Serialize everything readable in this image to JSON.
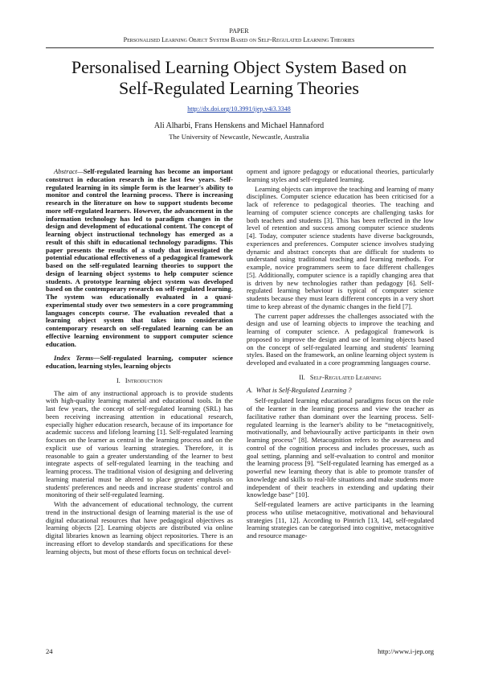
{
  "header": {
    "label": "PAPER",
    "running_title": "Personalised Learning Object System Based on Self-Regulated Learning Theories"
  },
  "title_block": {
    "title": "Personalised Learning Object System Based on Self-Regulated Learning Theories",
    "doi": "http://dx.doi.org/10.3991/ijep.v4i3.3348",
    "authors": "Ali Alharbi, Frans Henskens and Michael Hannaford",
    "affiliation": "The University of Newcastle, Newcastle, Australia"
  },
  "abstract": {
    "label": "Abstract—",
    "text": "Self-regulated learning has become an important construct in education research in the last few years. Self-regulated learning in its simple form is the learner's ability to monitor and control the learning process. There is increasing research in the literature on how to support students become more self-regulated learners. However, the advancement in the information technology has led to paradigm changes in the design and development of educational content. The concept of learning object instructional technology has emerged as a result of this shift in educational technology paradigms. This paper presents the results of a study that investigated the potential educational effectiveness of a pedagogical framework based on the self-regulated learning theories to support the design of learning object systems to help computer science students. A prototype learning object system was developed based on the contemporary research on self-regulated learning. The system was educationally evaluated in a quasi-experimental study over two semesters in a core programming languages concepts course. The evaluation revealed that a learning object system that takes into consideration contemporary research on self-regulated learning can be an effective learning environment to support computer science education."
  },
  "index_terms": {
    "label": "Index Terms—",
    "text": "Self-regulated learning, computer science education, learning styles, learning objects"
  },
  "sections": [
    {
      "number": "I.",
      "title": "Introduction",
      "paragraphs": [
        "The aim of any instructional approach is to provide students with high-quality learning material and educational tools. In the last few years, the concept of self-regulated learning (SRL) has been receiving increasing attention in educational research, especially higher education research, because of its importance for academic success and lifelong learning [1]. Self-regulated learning focuses on the learner as central in the learning process and on the explicit use of various learning strategies. Therefore, it is reasonable to gain a greater understanding of the learner to best integrate aspects of self-regulated learning in the teaching and learning process. The traditional vision of designing and delivering learning material must be altered to place greater emphasis on students' preferences and needs and increase students' control and monitoring of their self-regulated learning.",
        "With the advancement of educational technology, the current trend in the instructional design of learning material is the use of digital educational resources that have pedagogical objectives as learning objects [2]. Learning objects are distributed via online digital libraries known as learning object repositories. There is an increasing effort to develop standards and specifications for these learning objects, but most of these efforts focus on technical devel-",
        "opment and ignore pedagogy or educational theories, particularly learning styles and self-regulated learning.",
        "Learning objects can improve the teaching and learning of many disciplines. Computer science education has been criticised for a lack of reference to pedagogical theories. The teaching and learning of computer science concepts are challenging tasks for both teachers and students [3]. This has been reflected in the low level of retention and success among computer science students [4]. Today, computer science students have diverse backgrounds, experiences and preferences. Computer science involves studying dynamic and abstract concepts that are difficult for students to understand using traditional teaching and learning methods. For example, novice programmers seem to face different challenges [5]. Additionally, computer science is a rapidly changing area that is driven by new technologies rather than pedagogy [6]. Self-regulated learning behaviour is typical of computer science students because they must learn different concepts in a very short time to keep abreast of the dynamic changes in the field [7].",
        "The current paper addresses the challenges associated with the design and use of learning objects to improve the teaching and learning of computer science. A pedagogical framework is proposed to improve the design and use of learning objects based on the concept of self-regulated learning and students' learning styles. Based on the framework, an online learning object system is developed and evaluated in a core programming languages course."
      ]
    },
    {
      "number": "II.",
      "title": "Self-Regulated Learning",
      "subsection": {
        "label": "A.",
        "title": "What is Self-Regulated Learning ?"
      },
      "paragraphs": [
        "Self-regulated learning educational paradigms focus on the role of the learner in the learning process and view the teacher as facilitative rather than dominant over the learning process. Self-regulated learning is the learner's ability to be “metacognitively, motivationally, and behaviourally active participants in their own learning process” [8]. Metacognition refers to the awareness and control of the cognition process and includes processes, such as goal setting, planning and self-evaluation to control and monitor the learning process [9]. “Self-regulated learning has emerged as a powerful new learning theory that is able to promote transfer of knowledge and skills to real-life situations and make students more independent of their teachers in extending and updating their knowledge base” [10].",
        "Self-regulated learners are active participants in the learning process who utilise metacognitive, motivational and behavioural strategies [11, 12]. According to Pintrich [13, 14], self-regulated learning strategies can be categorised into cognitive, metacognitive and resource manage-"
      ]
    }
  ],
  "footer": {
    "page": "24",
    "url": "http://www.i-jep.org"
  }
}
